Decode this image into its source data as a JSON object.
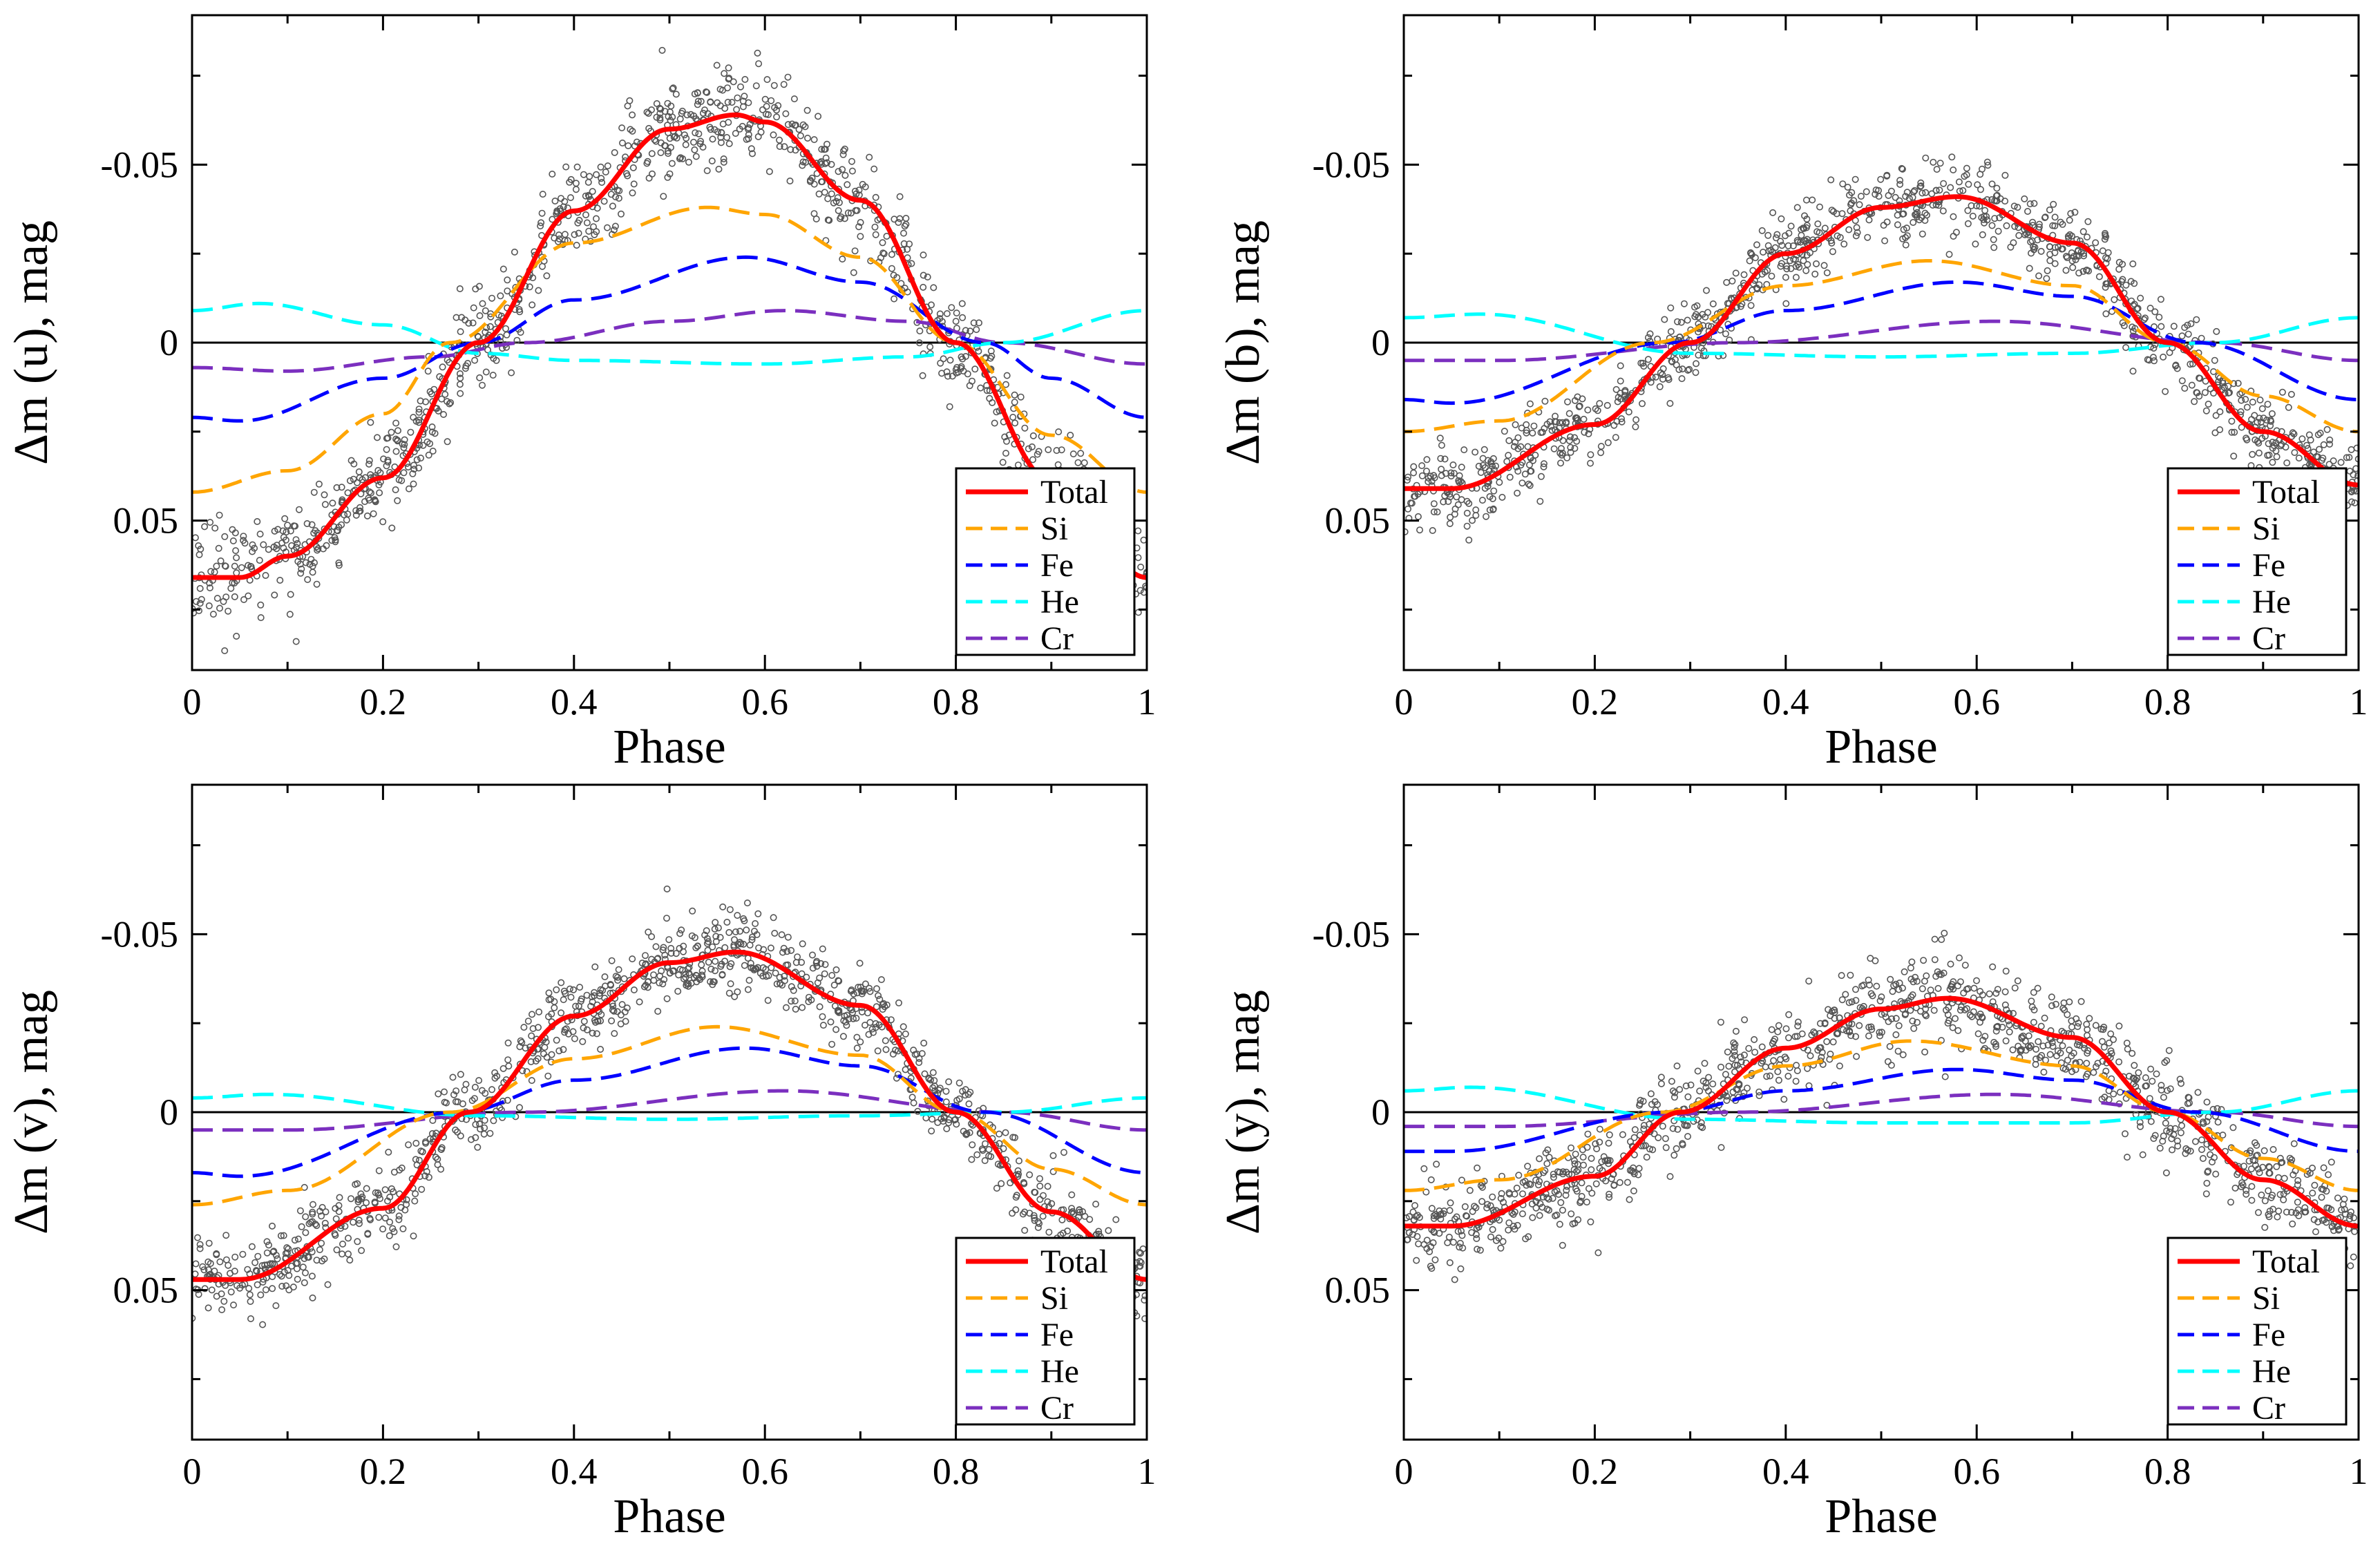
{
  "figure": {
    "x_tick_labels": [
      "0",
      "0.2",
      "0.4",
      "0.6",
      "0.8",
      "1"
    ],
    "y_tick_labels": [
      "-0.05",
      "0",
      "0.05"
    ],
    "legend": [
      "Total",
      "Si",
      "Fe",
      "He",
      "Cr"
    ]
  },
  "chart_data": [
    {
      "type": "line",
      "panel": "u",
      "title": "",
      "xlabel": "Phase",
      "ylabel": "Δm (u), mag",
      "xlim": [
        0,
        1
      ],
      "ylim": [
        0.092,
        -0.092
      ],
      "y_inverted": true,
      "x_ticks": [
        0,
        0.2,
        0.4,
        0.6,
        0.8,
        1
      ],
      "y_ticks": [
        -0.05,
        0,
        0.05
      ],
      "legend_position": "bottom-right",
      "observations": {
        "count": 1100,
        "scatter": 0.007,
        "x_range": [
          0,
          1
        ]
      },
      "series": [
        {
          "name": "Total",
          "color": "#ff0000",
          "style": "solid",
          "values_at_phase": {
            "0": 0.066,
            "0.05": 0.066,
            "0.1": 0.06,
            "0.2": 0.038,
            "0.3": 0.0,
            "0.4": -0.037,
            "0.5": -0.06,
            "0.57": -0.064,
            "0.6": -0.062,
            "0.7": -0.04,
            "0.8": 0.0,
            "0.9": 0.039,
            "1": 0.066
          }
        },
        {
          "name": "Si",
          "color": "#ffa500",
          "style": "dashed",
          "values_at_phase": {
            "0": 0.042,
            "0.1": 0.036,
            "0.2": 0.02,
            "0.27": 0.0,
            "0.4": -0.028,
            "0.54": -0.038,
            "0.6": -0.036,
            "0.7": -0.024,
            "0.8": 0.0,
            "0.9": 0.026,
            "1": 0.042
          }
        },
        {
          "name": "Fe",
          "color": "#0000ff",
          "style": "dashed",
          "values_at_phase": {
            "0": 0.021,
            "0.05": 0.022,
            "0.2": 0.01,
            "0.3": 0.0,
            "0.4": -0.012,
            "0.58": -0.024,
            "0.7": -0.017,
            "0.83": 0.0,
            "0.9": 0.01,
            "1": 0.021
          }
        },
        {
          "name": "He",
          "color": "#00ffff",
          "style": "dashed",
          "values_at_phase": {
            "0": -0.009,
            "0.07": -0.011,
            "0.2": -0.005,
            "0.3": 0.003,
            "0.4": 0.005,
            "0.6": 0.006,
            "0.75": 0.004,
            "0.85": 0.0,
            "1": -0.009
          }
        },
        {
          "name": "Cr",
          "color": "#7b2fbf",
          "style": "dashed",
          "values_at_phase": {
            "0": 0.007,
            "0.1": 0.008,
            "0.25": 0.004,
            "0.35": 0.0,
            "0.5": -0.006,
            "0.62": -0.009,
            "0.75": -0.006,
            "0.85": 0.0,
            "1": 0.006
          }
        }
      ]
    },
    {
      "type": "line",
      "panel": "b",
      "title": "",
      "xlabel": "Phase",
      "ylabel": "Δm (b), mag",
      "xlim": [
        0,
        1
      ],
      "ylim": [
        0.092,
        -0.092
      ],
      "y_inverted": true,
      "x_ticks": [
        0,
        0.2,
        0.4,
        0.6,
        0.8,
        1
      ],
      "y_ticks": [
        -0.05,
        0,
        0.05
      ],
      "legend_position": "bottom-right",
      "observations": {
        "count": 1100,
        "scatter": 0.0055,
        "x_range": [
          0,
          1
        ]
      },
      "series": [
        {
          "name": "Total",
          "color": "#ff0000",
          "style": "solid",
          "values_at_phase": {
            "0": 0.041,
            "0.05": 0.041,
            "0.2": 0.023,
            "0.3": 0.0,
            "0.4": -0.025,
            "0.5": -0.038,
            "0.58": -0.041,
            "0.7": -0.028,
            "0.8": 0.0,
            "0.9": 0.025,
            "1": 0.04
          }
        },
        {
          "name": "Si",
          "color": "#ffa500",
          "style": "dashed",
          "values_at_phase": {
            "0": 0.025,
            "0.1": 0.022,
            "0.26": 0.0,
            "0.4": -0.016,
            "0.55": -0.023,
            "0.7": -0.016,
            "0.8": 0.0,
            "0.9": 0.015,
            "1": 0.025
          }
        },
        {
          "name": "Fe",
          "color": "#0000ff",
          "style": "dashed",
          "values_at_phase": {
            "0": 0.016,
            "0.05": 0.017,
            "0.28": 0.0,
            "0.4": -0.009,
            "0.58": -0.017,
            "0.7": -0.013,
            "0.83": 0.0,
            "1": 0.016
          }
        },
        {
          "name": "He",
          "color": "#00ffff",
          "style": "dashed",
          "values_at_phase": {
            "0": -0.007,
            "0.08": -0.008,
            "0.3": 0.003,
            "0.5": 0.004,
            "0.7": 0.003,
            "0.85": 0.0,
            "1": -0.007
          }
        },
        {
          "name": "Cr",
          "color": "#7b2fbf",
          "style": "dashed",
          "values_at_phase": {
            "0": 0.005,
            "0.1": 0.005,
            "0.35": 0.0,
            "0.62": -0.006,
            "0.85": 0.0,
            "1": 0.005
          }
        }
      ]
    },
    {
      "type": "line",
      "panel": "v",
      "title": "",
      "xlabel": "Phase",
      "ylabel": "Δm (v), mag",
      "xlim": [
        0,
        1
      ],
      "ylim": [
        0.092,
        -0.092
      ],
      "y_inverted": true,
      "x_ticks": [
        0,
        0.2,
        0.4,
        0.6,
        0.8,
        1
      ],
      "y_ticks": [
        -0.05,
        0,
        0.05
      ],
      "legend_position": "bottom-right",
      "observations": {
        "count": 1100,
        "scatter": 0.0055,
        "x_range": [
          0,
          1
        ]
      },
      "series": [
        {
          "name": "Total",
          "color": "#ff0000",
          "style": "solid",
          "values_at_phase": {
            "0": 0.047,
            "0.05": 0.047,
            "0.2": 0.027,
            "0.29": 0.0,
            "0.4": -0.027,
            "0.5": -0.042,
            "0.57": -0.045,
            "0.7": -0.03,
            "0.8": 0.0,
            "0.9": 0.028,
            "1": 0.047
          }
        },
        {
          "name": "Si",
          "color": "#ffa500",
          "style": "dashed",
          "values_at_phase": {
            "0": 0.026,
            "0.1": 0.022,
            "0.27": 0.0,
            "0.4": -0.015,
            "0.55": -0.024,
            "0.7": -0.016,
            "0.8": 0.0,
            "0.9": 0.016,
            "1": 0.026
          }
        },
        {
          "name": "Fe",
          "color": "#0000ff",
          "style": "dashed",
          "values_at_phase": {
            "0": 0.017,
            "0.05": 0.018,
            "0.28": 0.0,
            "0.4": -0.009,
            "0.58": -0.018,
            "0.7": -0.013,
            "0.83": 0.0,
            "1": 0.017
          }
        },
        {
          "name": "He",
          "color": "#00ffff",
          "style": "dashed",
          "values_at_phase": {
            "0": -0.004,
            "0.08": -0.005,
            "0.3": 0.001,
            "0.5": 0.002,
            "0.7": 0.001,
            "0.85": 0.0,
            "1": -0.004
          }
        },
        {
          "name": "Cr",
          "color": "#7b2fbf",
          "style": "dashed",
          "values_at_phase": {
            "0": 0.005,
            "0.1": 0.005,
            "0.35": 0.0,
            "0.62": -0.006,
            "0.85": 0.0,
            "1": 0.005
          }
        }
      ]
    },
    {
      "type": "line",
      "panel": "y",
      "title": "",
      "xlabel": "Phase",
      "ylabel": "Δm (y), mag",
      "xlim": [
        0,
        1
      ],
      "ylim": [
        0.092,
        -0.092
      ],
      "y_inverted": true,
      "x_ticks": [
        0,
        0.2,
        0.4,
        0.6,
        0.8,
        1
      ],
      "y_ticks": [
        -0.05,
        0,
        0.05
      ],
      "legend_position": "bottom-right",
      "observations": {
        "count": 1100,
        "scatter": 0.006,
        "x_range": [
          0,
          1
        ]
      },
      "series": [
        {
          "name": "Total",
          "color": "#ff0000",
          "style": "solid",
          "values_at_phase": {
            "0": 0.032,
            "0.05": 0.032,
            "0.2": 0.018,
            "0.29": 0.0,
            "0.4": -0.018,
            "0.5": -0.029,
            "0.57": -0.032,
            "0.7": -0.021,
            "0.8": 0.0,
            "0.9": 0.019,
            "1": 0.032
          }
        },
        {
          "name": "Si",
          "color": "#ffa500",
          "style": "dashed",
          "values_at_phase": {
            "0": 0.022,
            "0.1": 0.019,
            "0.27": 0.0,
            "0.4": -0.013,
            "0.53": -0.02,
            "0.7": -0.013,
            "0.8": 0.0,
            "0.9": 0.013,
            "1": 0.022
          }
        },
        {
          "name": "Fe",
          "color": "#0000ff",
          "style": "dashed",
          "values_at_phase": {
            "0": 0.011,
            "0.05": 0.011,
            "0.28": 0.0,
            "0.4": -0.006,
            "0.58": -0.012,
            "0.7": -0.009,
            "0.83": 0.0,
            "1": 0.011
          }
        },
        {
          "name": "He",
          "color": "#00ffff",
          "style": "dashed",
          "values_at_phase": {
            "0": -0.006,
            "0.07": -0.007,
            "0.3": 0.002,
            "0.5": 0.003,
            "0.7": 0.003,
            "0.85": 0.0,
            "1": -0.006
          }
        },
        {
          "name": "Cr",
          "color": "#7b2fbf",
          "style": "dashed",
          "values_at_phase": {
            "0": 0.004,
            "0.1": 0.004,
            "0.35": 0.0,
            "0.62": -0.005,
            "0.85": 0.0,
            "1": 0.004
          }
        }
      ]
    }
  ]
}
